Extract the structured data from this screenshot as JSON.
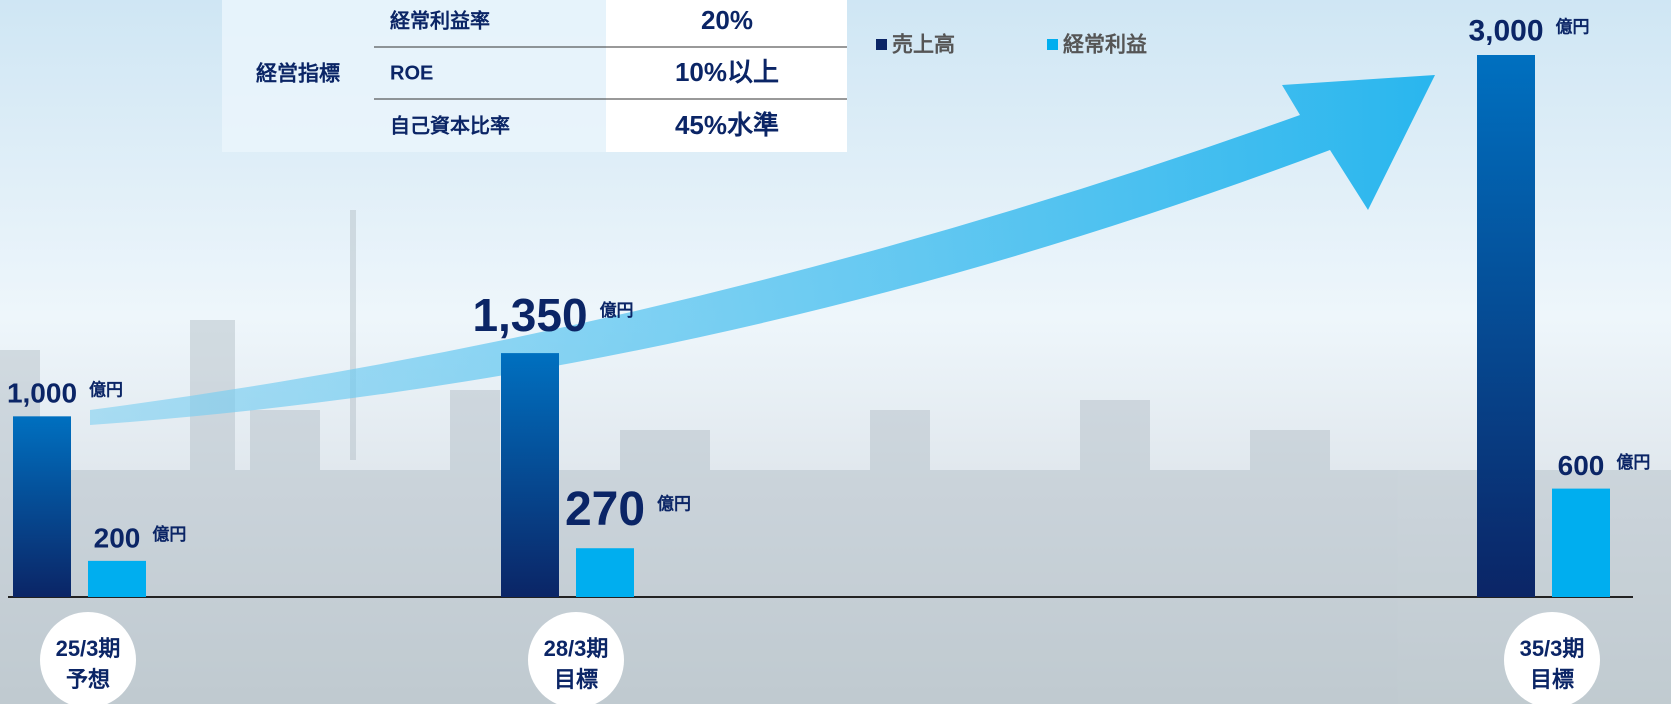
{
  "chart_data": {
    "type": "bar",
    "categories": [
      "25/3期",
      "28/3期",
      "35/3期"
    ],
    "category_notes": [
      "予想",
      "目標",
      "目標"
    ],
    "unit": "億円",
    "series": [
      {
        "name": "売上高",
        "color": "#0b2566",
        "values": [
          1000,
          1350,
          3000
        ],
        "value_labels": [
          "1,000",
          "1,350",
          "3,000"
        ]
      },
      {
        "name": "経常利益",
        "color": "#00aeef",
        "values": [
          200,
          270,
          600
        ]
      }
    ],
    "ylim": [
      0,
      3000
    ]
  },
  "table": {
    "group": "経営指標",
    "rows": [
      [
        "経常利益率",
        "20%"
      ],
      [
        "ROE",
        "10%以上"
      ],
      [
        "自己資本比率",
        "45%水準"
      ]
    ]
  }
}
